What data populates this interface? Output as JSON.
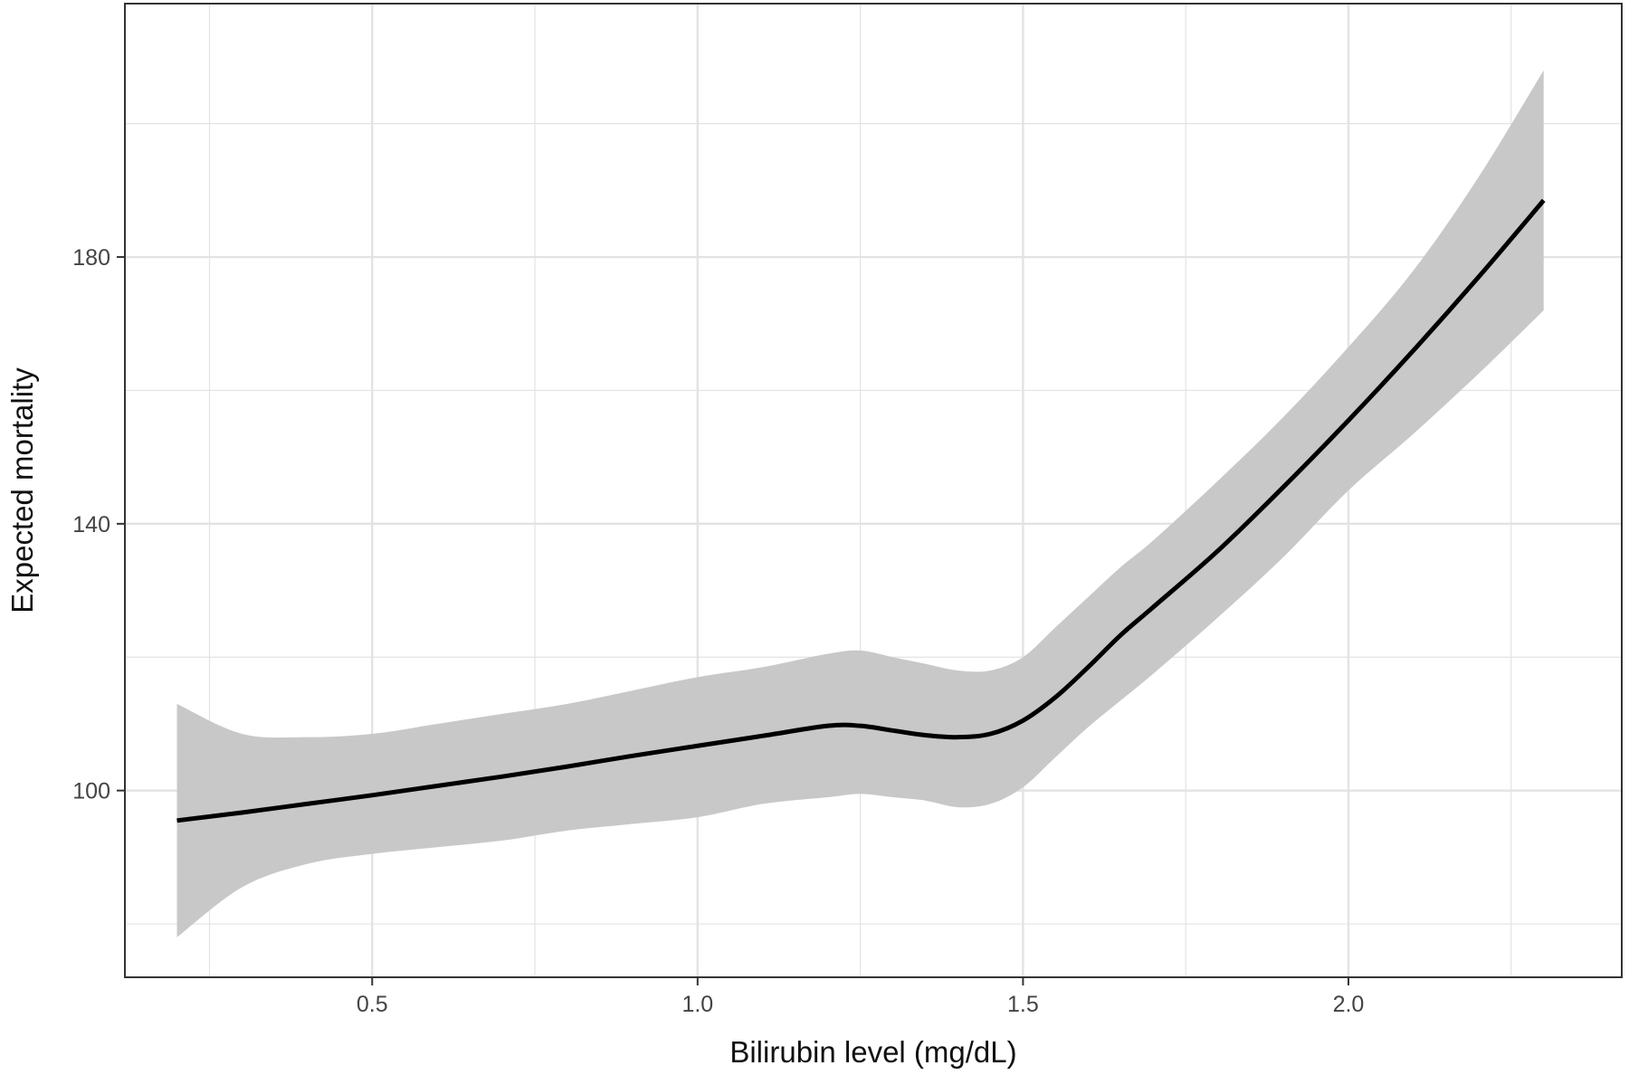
{
  "chart_data": {
    "type": "line",
    "title": "",
    "xlabel": "Bilirubin level (mg/dL)",
    "ylabel": "Expected mortality",
    "xlim": [
      0.12,
      2.42
    ],
    "ylim": [
      72,
      218
    ],
    "x_ticks": [
      0.5,
      1.0,
      1.5,
      2.0
    ],
    "x_tick_labels": [
      "0.5",
      "1.0",
      "1.5",
      "2.0"
    ],
    "x_minor_ticks": [
      0.25,
      0.75,
      1.25,
      1.75,
      2.25
    ],
    "y_ticks": [
      100,
      140,
      180
    ],
    "y_tick_labels": [
      "100",
      "140",
      "180"
    ],
    "y_minor_ticks": [
      80,
      120,
      160,
      200
    ],
    "grid": true,
    "legend": "none",
    "colors": {
      "line": "#000000",
      "band": "#c8c8c8",
      "grid": "#e3e3e3",
      "border": "#333333"
    },
    "series": [
      {
        "style": "line-with-confidence-band",
        "x": [
          0.2,
          0.3,
          0.4,
          0.5,
          0.6,
          0.7,
          0.8,
          0.9,
          1.0,
          1.1,
          1.2,
          1.25,
          1.3,
          1.35,
          1.4,
          1.45,
          1.5,
          1.55,
          1.6,
          1.65,
          1.7,
          1.8,
          1.9,
          2.0,
          2.1,
          2.2,
          2.3
        ],
        "y": [
          95.5,
          96.7,
          98.0,
          99.3,
          100.7,
          102.1,
          103.6,
          105.2,
          106.7,
          108.2,
          109.7,
          109.7,
          109.0,
          108.3,
          108.0,
          108.5,
          110.5,
          114.0,
          118.5,
          123.3,
          127.5,
          136.0,
          145.5,
          155.5,
          166.0,
          177.0,
          188.5
        ],
        "upper": [
          113.0,
          108.5,
          108.0,
          108.5,
          110.0,
          111.5,
          113.0,
          115.0,
          117.0,
          118.5,
          120.5,
          121.0,
          120.0,
          119.0,
          118.0,
          118.0,
          120.0,
          124.5,
          129.0,
          133.5,
          137.5,
          146.5,
          156.0,
          166.5,
          178.0,
          192.0,
          208.0
        ],
        "lower": [
          78.0,
          85.5,
          89.0,
          90.5,
          91.5,
          92.5,
          94.0,
          95.0,
          96.0,
          98.0,
          99.0,
          99.5,
          99.0,
          98.5,
          97.5,
          98.0,
          100.5,
          105.0,
          109.5,
          113.5,
          117.5,
          126.0,
          135.0,
          145.0,
          153.5,
          162.5,
          172.0
        ]
      }
    ]
  }
}
